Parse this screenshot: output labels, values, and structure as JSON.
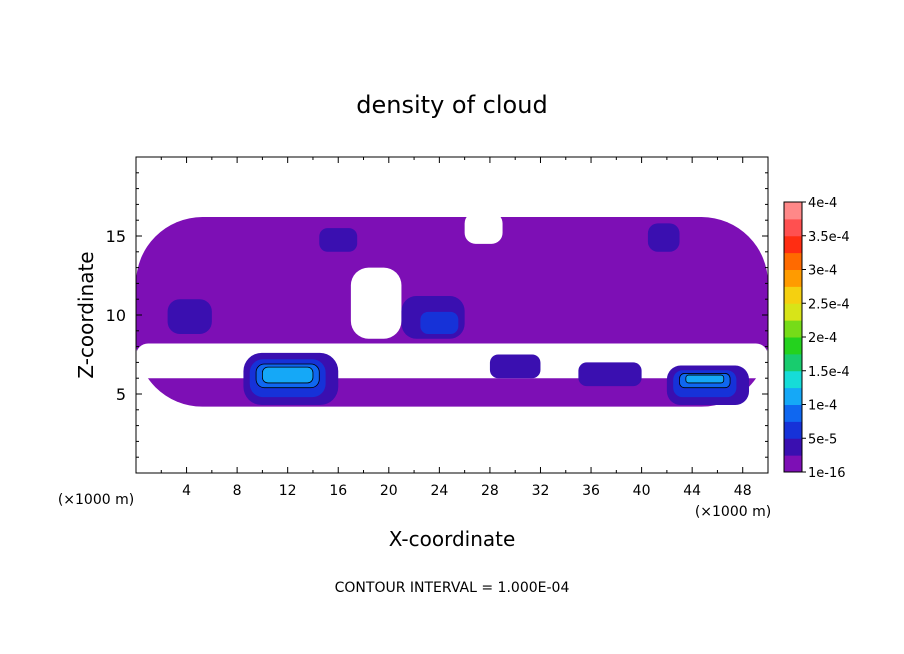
{
  "chart_data": {
    "type": "heatmap",
    "title": "density of cloud",
    "xlabel": "X-coordinate",
    "ylabel": "Z-coordinate",
    "x_unit": "(×1000 m)",
    "y_unit": "(×1000 m)",
    "xlim": [
      0,
      50
    ],
    "ylim": [
      0,
      20
    ],
    "x_ticks": [
      4,
      8,
      12,
      16,
      20,
      24,
      28,
      32,
      36,
      40,
      44,
      48
    ],
    "y_ticks": [
      5,
      10,
      15
    ],
    "footer": "CONTOUR INTERVAL = 1.000E-04",
    "colorbar": {
      "labels": [
        "1e-16",
        "5e-5",
        "1e-4",
        "1.5e-4",
        "2e-4",
        "2.5e-4",
        "3e-4",
        "3.5e-4",
        "4e-4"
      ],
      "colors": [
        "#7d0fb5",
        "#3a0fb0",
        "#1632d8",
        "#0f67f0",
        "#15a8f7",
        "#16dcd8",
        "#18cc6e",
        "#24d21e",
        "#76dc18",
        "#d8e418",
        "#f5d010",
        "#ff9b00",
        "#ff6a00",
        "#ff2d12",
        "#ff5050",
        "#ff8888"
      ]
    },
    "regions": [
      {
        "level": 1,
        "x": [
          0,
          50
        ],
        "z": [
          4.2,
          16.2
        ]
      },
      {
        "level": 0,
        "x": [
          0,
          50
        ],
        "z": [
          6.0,
          8.2
        ]
      },
      {
        "level": 0,
        "x": [
          17,
          21
        ],
        "z": [
          8.5,
          13.0
        ]
      },
      {
        "level": 0,
        "x": [
          26,
          29
        ],
        "z": [
          14.5,
          16.5
        ]
      },
      {
        "level": 2,
        "x": [
          2.5,
          6
        ],
        "z": [
          8.8,
          11.0
        ]
      },
      {
        "level": 2,
        "x": [
          14.5,
          17.5
        ],
        "z": [
          14.0,
          15.5
        ]
      },
      {
        "level": 2,
        "x": [
          40.5,
          43
        ],
        "z": [
          14.0,
          15.8
        ]
      },
      {
        "level": 2,
        "x": [
          21,
          26
        ],
        "z": [
          8.5,
          11.2
        ]
      },
      {
        "level": 3,
        "x": [
          22.5,
          25.5
        ],
        "z": [
          8.8,
          10.2
        ]
      },
      {
        "level": 2,
        "x": [
          35,
          40
        ],
        "z": [
          5.5,
          7.0
        ]
      },
      {
        "level": 2,
        "x": [
          28,
          32
        ],
        "z": [
          6.0,
          7.5
        ]
      },
      {
        "level": 2,
        "x": [
          8.5,
          16
        ],
        "z": [
          4.3,
          7.6
        ]
      },
      {
        "level": 3,
        "x": [
          9.0,
          15.0
        ],
        "z": [
          4.8,
          7.2
        ]
      },
      {
        "level": 4,
        "x": [
          9.5,
          14.5
        ],
        "z": [
          5.4,
          6.9
        ]
      },
      {
        "level": 5,
        "x": [
          10.0,
          14.0
        ],
        "z": [
          5.7,
          6.7
        ]
      },
      {
        "level": 2,
        "x": [
          42,
          48.5
        ],
        "z": [
          4.3,
          6.8
        ]
      },
      {
        "level": 3,
        "x": [
          42.5,
          47.5
        ],
        "z": [
          4.8,
          6.5
        ]
      },
      {
        "level": 4,
        "x": [
          43,
          47
        ],
        "z": [
          5.4,
          6.3
        ]
      },
      {
        "level": 5,
        "x": [
          43.5,
          46.5
        ],
        "z": [
          5.7,
          6.2
        ]
      }
    ]
  }
}
